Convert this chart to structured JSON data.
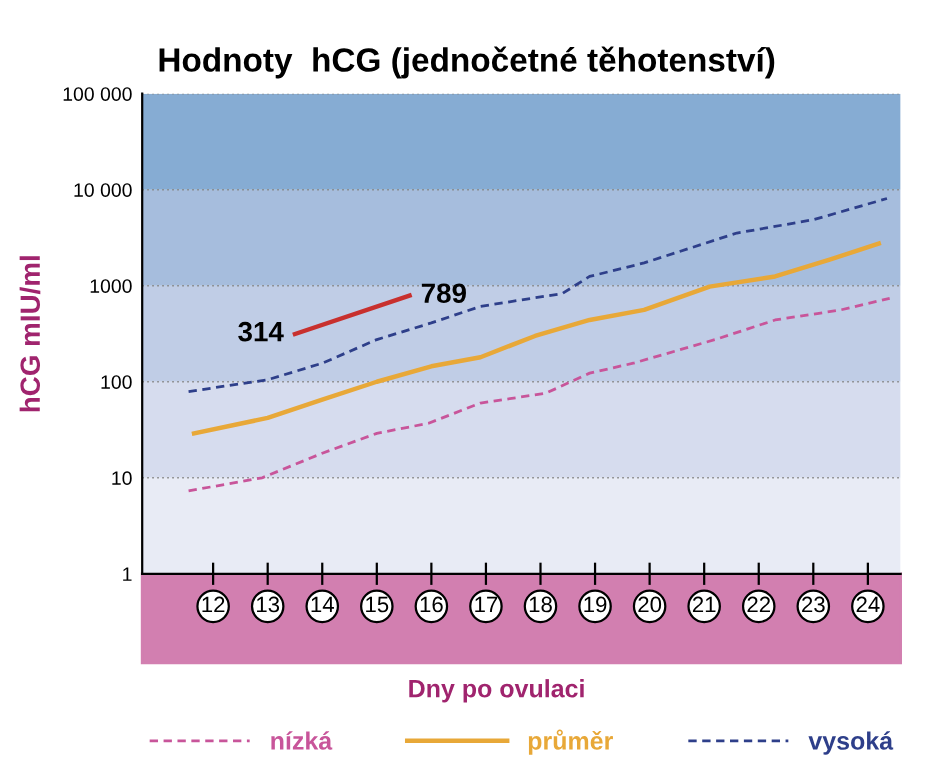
{
  "chart_data": {
    "type": "line",
    "title": "Hodnoty  hCG (jednočetné těhotenství)",
    "xlabel": "Dny po ovulaci",
    "ylabel": "hCG mIU/ml",
    "log": "y",
    "xlim": [
      10.7,
      24.6
    ],
    "xticks": [
      12,
      13,
      14,
      15,
      16,
      17,
      18,
      19,
      20,
      21,
      22,
      23,
      24
    ],
    "ylim": [
      1,
      100000
    ],
    "yticks": [
      1,
      10,
      100,
      1000,
      {
        "value": 10000,
        "label": "10 000"
      },
      {
        "value": 100000,
        "label": "100 000"
      }
    ],
    "grid": "y",
    "legend": "bottom",
    "bands": [
      {
        "axis": "y",
        "from": 1,
        "to": 10,
        "color": "#e8ebf5"
      },
      {
        "axis": "y",
        "from": 10,
        "to": 100,
        "color": "#d6dcee"
      },
      {
        "axis": "y",
        "from": 100,
        "to": 1000,
        "color": "#c0cde6"
      },
      {
        "axis": "y",
        "from": 1000,
        "to": 10000,
        "color": "#a6bddd"
      },
      {
        "axis": "y",
        "from": 10000,
        "to": 100000,
        "color": "#86acd3"
      }
    ],
    "series": [
      {
        "name": "nízká",
        "color": "#c8559a",
        "line_style": "dashed",
        "x": [
          11.55,
          12.9,
          14.0,
          15.0,
          15.95,
          16.9,
          18.1,
          18.9,
          19.7,
          21.2,
          22.3,
          23.5,
          24.4
        ],
        "values": [
          7.3,
          10,
          18,
          29,
          37,
          60,
          76,
          123,
          156,
          275,
          440,
          560,
          740
        ]
      },
      {
        "name": "průměr",
        "color": "#e8a838",
        "line_style": "solid",
        "x": [
          11.65,
          13.0,
          14.0,
          15.0,
          16.0,
          16.9,
          17.9,
          18.9,
          19.9,
          21.1,
          22.3,
          23.3,
          24.2
        ],
        "values": [
          29,
          42,
          65,
          100,
          145,
          180,
          300,
          440,
          560,
          980,
          1250,
          1870,
          2750
        ]
      },
      {
        "name": "vysoká",
        "color": "#2e3f8a",
        "line_style": "dashed",
        "x": [
          11.55,
          13.0,
          14.0,
          15.0,
          16.0,
          16.9,
          18.4,
          18.9,
          19.9,
          21.6,
          23.0,
          24.35
        ],
        "values": [
          79,
          105,
          156,
          275,
          410,
          610,
          830,
          1250,
          1730,
          3540,
          4870,
          8100
        ]
      },
      {
        "color": "#c8302e",
        "line_style": "solid",
        "x": [
          13.5,
          15.6
        ],
        "values": [
          314,
          789
        ],
        "value_labels": [
          "314",
          "789"
        ]
      }
    ]
  }
}
